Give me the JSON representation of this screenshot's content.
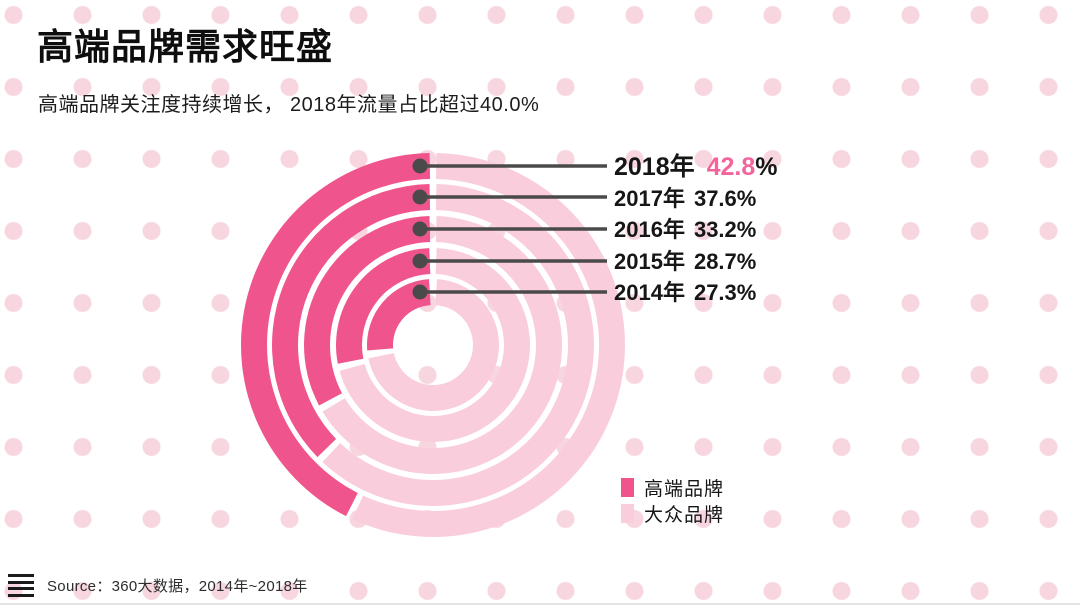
{
  "page": {
    "title": "高端品牌需求旺盛",
    "subtitle": "高端品牌关注度持续增长， 2018年流量占比超过40.0%",
    "source_label": "Source：360大数据，2014年~2018年"
  },
  "colors": {
    "premium": "#F0548C",
    "mass": "#F9CDDB",
    "highlight_value": "#F4639B",
    "callout": "#4A4A4A",
    "background_dot": "#F8D6DF"
  },
  "legend": {
    "items": [
      {
        "label": "高端品牌",
        "color_key": "premium"
      },
      {
        "label": "大众品牌",
        "color_key": "mass"
      }
    ]
  },
  "chart_data": {
    "type": "pie",
    "subtype": "concentric-donut-rings",
    "title": "高端品牌需求旺盛",
    "series_names": [
      "高端品牌",
      "大众品牌"
    ],
    "arc_start": "12-oclock",
    "arc_direction": "counterclockwise",
    "legend_position": "bottom-right",
    "percent_sign": "%",
    "rings": [
      {
        "year": "2018年",
        "premium_pct": 42.8,
        "mass_pct": 57.2,
        "value_text": "42.8",
        "highlighted": true
      },
      {
        "year": "2017年",
        "premium_pct": 37.6,
        "mass_pct": 62.4,
        "value_text": "37.6",
        "highlighted": false
      },
      {
        "year": "2016年",
        "premium_pct": 33.2,
        "mass_pct": 66.8,
        "value_text": "33.2",
        "highlighted": false
      },
      {
        "year": "2015年",
        "premium_pct": 28.7,
        "mass_pct": 71.3,
        "value_text": "28.7",
        "highlighted": false
      },
      {
        "year": "2014年",
        "premium_pct": 27.3,
        "mass_pct": 72.7,
        "value_text": "27.3",
        "highlighted": false
      }
    ]
  }
}
